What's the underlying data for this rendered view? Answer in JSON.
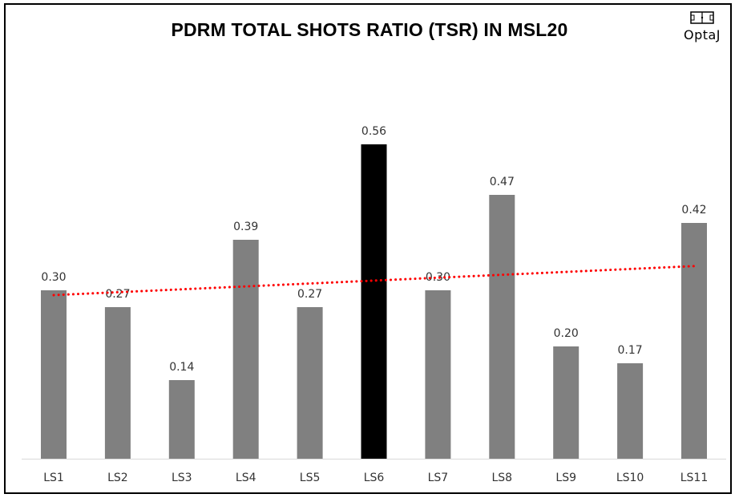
{
  "chart_data": {
    "type": "bar",
    "title": "PDRM TOTAL SHOTS RATIO (TSR) IN MSL20",
    "categories": [
      "LS1",
      "LS2",
      "LS3",
      "LS4",
      "LS5",
      "LS6",
      "LS7",
      "LS8",
      "LS9",
      "LS10",
      "LS11"
    ],
    "values": [
      0.3,
      0.27,
      0.14,
      0.39,
      0.27,
      0.56,
      0.3,
      0.47,
      0.2,
      0.17,
      0.42
    ],
    "labels": [
      "0.30",
      "0.27",
      "0.14",
      "0.39",
      "0.27",
      "0.56",
      "0.30",
      "0.47",
      "0.20",
      "0.17",
      "0.42"
    ],
    "highlight_index": 5,
    "trendline": {
      "type": "linear",
      "style": "dotted",
      "color": "#ff0000"
    },
    "xlabel": "",
    "ylabel": "",
    "ylim": [
      0,
      0.6
    ],
    "grid": false,
    "legend": "none"
  },
  "colors": {
    "bar": "#808080",
    "highlight": "#000000",
    "trend": "#ff0000",
    "axis": "#d9d9d9"
  },
  "logo": {
    "text": "OptaJ",
    "icon": "pitch-icon"
  }
}
